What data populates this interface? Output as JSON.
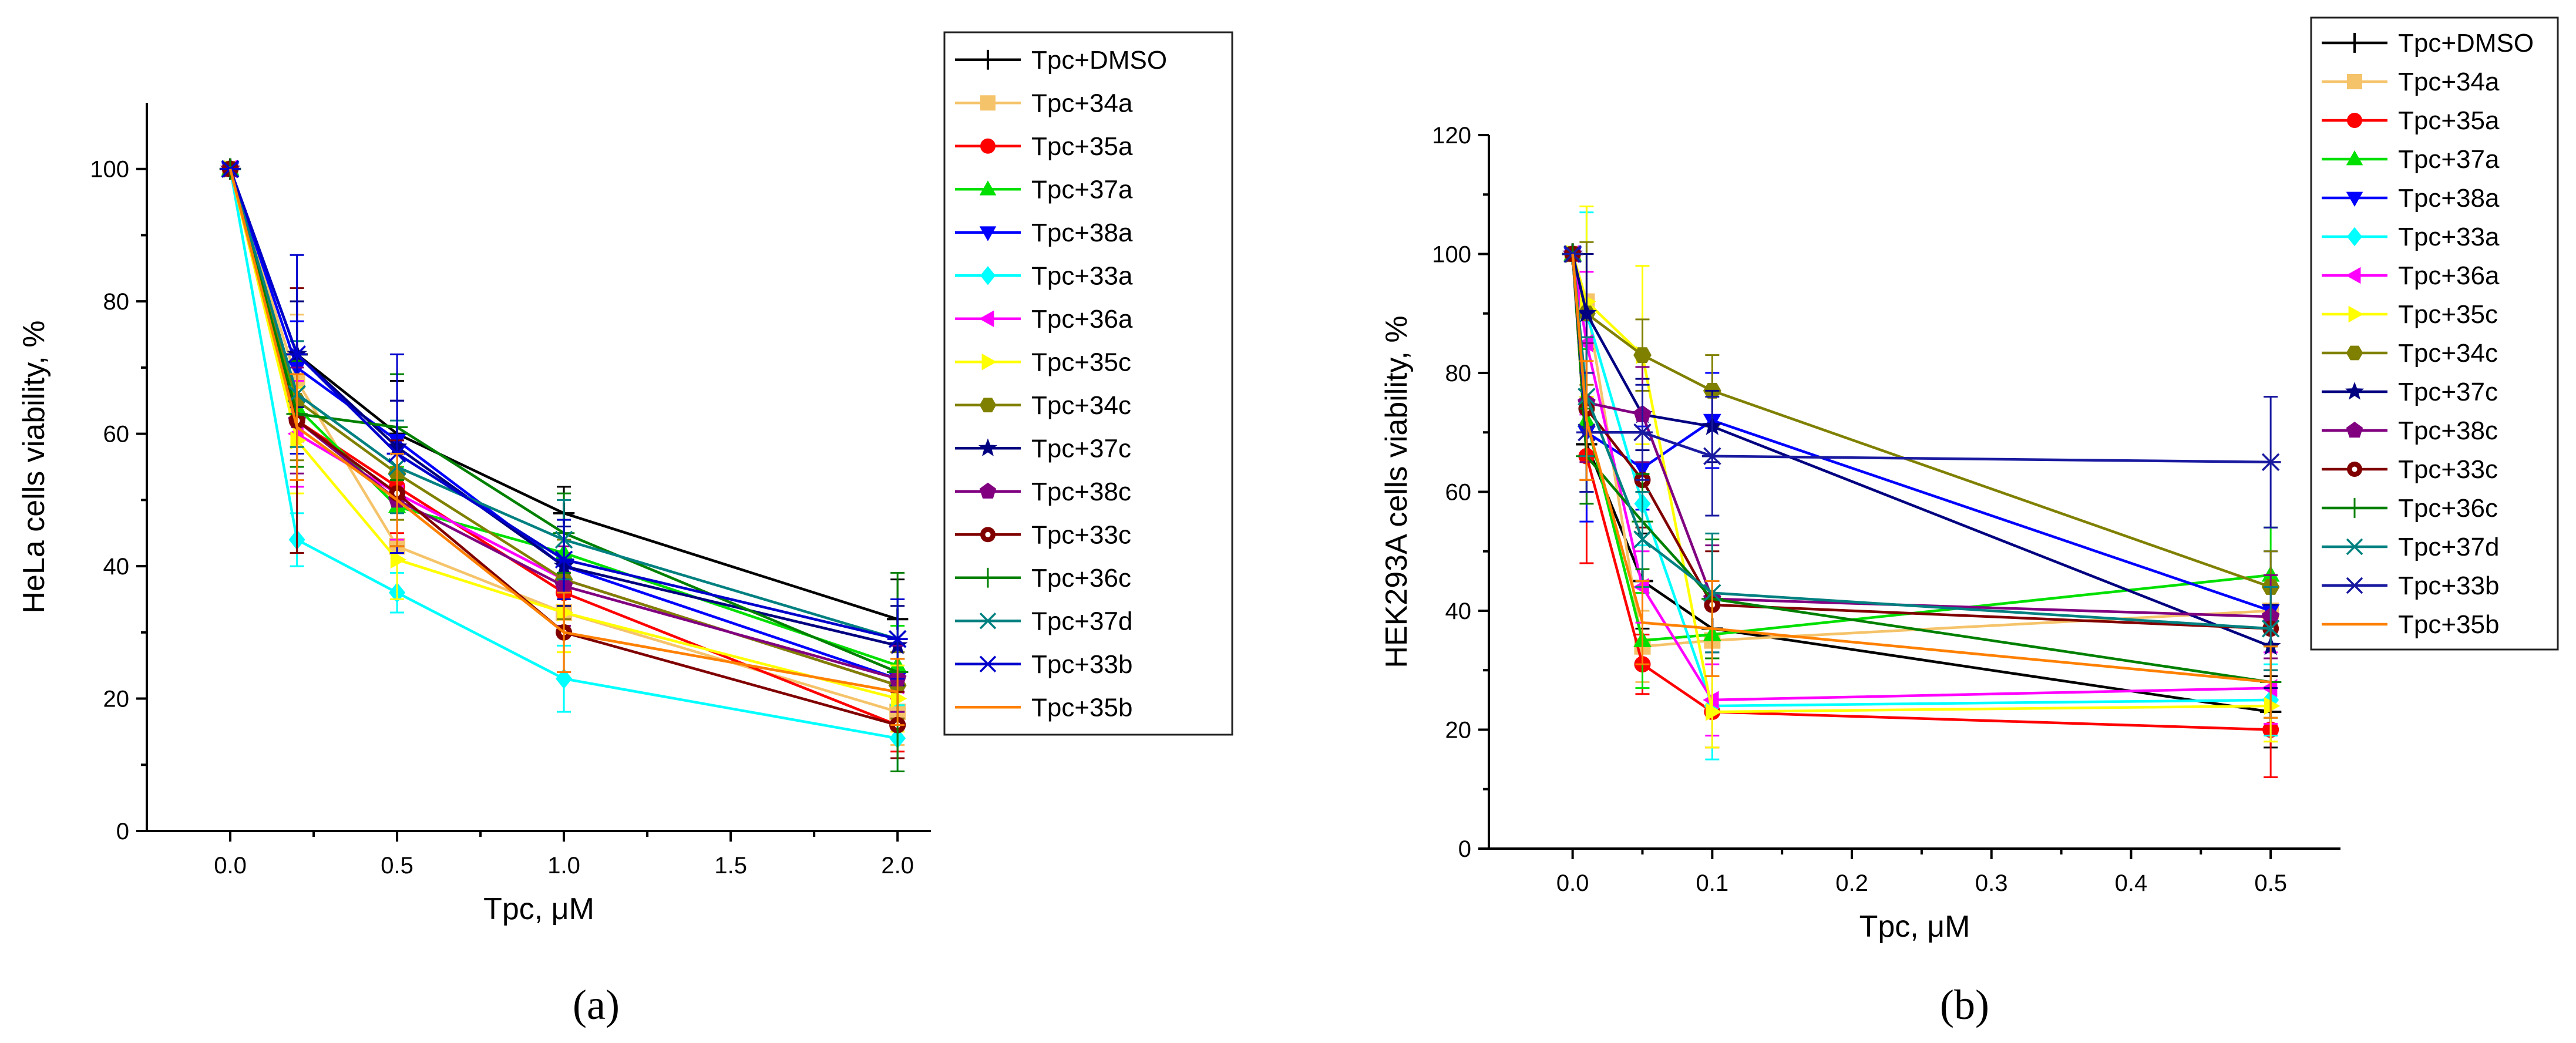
{
  "chart_data": [
    {
      "type": "line",
      "panel_label": "(a)",
      "xlabel": "Tpc, μM",
      "ylabel": "HeLa cells viability, %",
      "xlim": [
        -0.25,
        2.1
      ],
      "ylim": [
        0,
        110
      ],
      "x_ticks": [
        0.0,
        0.5,
        1.0,
        1.5,
        2.0
      ],
      "x_tick_labels": [
        "0.0",
        "0.5",
        "1.0",
        "1.5",
        "2.0"
      ],
      "y_ticks": [
        0,
        20,
        40,
        60,
        80,
        100
      ],
      "y_tick_labels": [
        "0",
        "20",
        "40",
        "60",
        "80",
        "100"
      ],
      "legend_placement": "right",
      "x": [
        0,
        0.2,
        0.5,
        1.0,
        2.0
      ],
      "series": [
        {
          "name": "Tpc+DMSO",
          "color": "#000000",
          "marker": "plus",
          "values": [
            100,
            72,
            60,
            48,
            32
          ],
          "errors": [
            0,
            8,
            8,
            4,
            6
          ]
        },
        {
          "name": "Tpc+34a",
          "color": "#f5c36a",
          "marker": "square",
          "values": [
            100,
            68,
            43,
            33,
            18
          ],
          "errors": [
            0,
            10,
            7,
            6,
            5
          ]
        },
        {
          "name": "Tpc+35a",
          "color": "#ff0000",
          "marker": "circle",
          "values": [
            100,
            62,
            52,
            36,
            16
          ],
          "errors": [
            0,
            9,
            7,
            6,
            4
          ]
        },
        {
          "name": "Tpc+37a",
          "color": "#00e000",
          "marker": "triangle-up",
          "values": [
            100,
            64,
            49,
            42,
            25
          ],
          "errors": [
            0,
            7,
            6,
            5,
            6
          ]
        },
        {
          "name": "Tpc+38a",
          "color": "#0000ff",
          "marker": "triangle-down",
          "values": [
            100,
            70,
            59,
            40,
            23
          ],
          "errors": [
            0,
            7,
            6,
            5,
            5
          ]
        },
        {
          "name": "Tpc+33a",
          "color": "#00ffff",
          "marker": "diamond",
          "values": [
            100,
            44,
            36,
            23,
            14
          ],
          "errors": [
            0,
            4,
            3,
            5,
            5
          ]
        },
        {
          "name": "Tpc+36a",
          "color": "#ff00ff",
          "marker": "triangle-left",
          "values": [
            100,
            60,
            51,
            38,
            22
          ],
          "errors": [
            0,
            8,
            7,
            6,
            5
          ]
        },
        {
          "name": "Tpc+35c",
          "color": "#ffff00",
          "marker": "triangle-right",
          "values": [
            100,
            59,
            41,
            33,
            20
          ],
          "errors": [
            0,
            8,
            6,
            6,
            5
          ]
        },
        {
          "name": "Tpc+34c",
          "color": "#808000",
          "marker": "hexagon",
          "values": [
            100,
            65,
            54,
            38,
            22
          ],
          "errors": [
            0,
            9,
            7,
            6,
            5
          ]
        },
        {
          "name": "Tpc+37c",
          "color": "#000080",
          "marker": "star",
          "values": [
            100,
            72,
            58,
            40,
            28
          ],
          "errors": [
            0,
            8,
            7,
            6,
            6
          ]
        },
        {
          "name": "Tpc+38c",
          "color": "#800080",
          "marker": "pentagon",
          "values": [
            100,
            62,
            50,
            37,
            23
          ],
          "errors": [
            0,
            8,
            7,
            6,
            5
          ]
        },
        {
          "name": "Tpc+33c",
          "color": "#800000",
          "marker": "circle-dot",
          "values": [
            100,
            62,
            51,
            30,
            16
          ],
          "errors": [
            0,
            20,
            8,
            6,
            5
          ]
        },
        {
          "name": "Tpc+36c",
          "color": "#008000",
          "marker": "thin-plus",
          "values": [
            100,
            63,
            61,
            45,
            24
          ],
          "errors": [
            0,
            8,
            8,
            6,
            15
          ]
        },
        {
          "name": "Tpc+37d",
          "color": "#008080",
          "marker": "x",
          "values": [
            100,
            66,
            55,
            44,
            29
          ],
          "errors": [
            0,
            8,
            7,
            6,
            6
          ]
        },
        {
          "name": "Tpc+33b",
          "color": "#0000cd",
          "marker": "asterisk",
          "values": [
            100,
            72,
            57,
            41,
            29
          ],
          "errors": [
            0,
            15,
            15,
            6,
            6
          ]
        },
        {
          "name": "Tpc+35b",
          "color": "#ff8000",
          "marker": "none",
          "values": [
            100,
            61,
            50,
            30,
            21
          ],
          "errors": [
            0,
            8,
            7,
            6,
            5
          ]
        }
      ]
    },
    {
      "type": "line",
      "panel_label": "(b)",
      "xlabel": "Tpc, μM",
      "ylabel": "HEK293A cells viability, %",
      "xlim": [
        -0.06,
        0.55
      ],
      "ylim": [
        0,
        120
      ],
      "x_ticks": [
        0.0,
        0.1,
        0.2,
        0.3,
        0.4,
        0.5
      ],
      "x_tick_labels": [
        "0.0",
        "0.1",
        "0.2",
        "0.3",
        "0.4",
        "0.5"
      ],
      "y_ticks": [
        0,
        20,
        40,
        60,
        80,
        100,
        120
      ],
      "y_tick_labels": [
        "0",
        "20",
        "40",
        "60",
        "80",
        "100",
        "120"
      ],
      "legend_placement": "right",
      "x": [
        0,
        0.01,
        0.05,
        0.1,
        0.5
      ],
      "series": [
        {
          "name": "Tpc+DMSO",
          "color": "#000000",
          "marker": "plus",
          "values": [
            100,
            68,
            45,
            37,
            23
          ],
          "errors": [
            0,
            8,
            8,
            8,
            6
          ]
        },
        {
          "name": "Tpc+34a",
          "color": "#f5c36a",
          "marker": "square",
          "values": [
            100,
            92,
            34,
            35,
            40
          ],
          "errors": [
            0,
            16,
            6,
            6,
            6
          ]
        },
        {
          "name": "Tpc+35a",
          "color": "#ff0000",
          "marker": "circle",
          "values": [
            100,
            66,
            31,
            23,
            20
          ],
          "errors": [
            0,
            18,
            5,
            6,
            8
          ]
        },
        {
          "name": "Tpc+37a",
          "color": "#00e000",
          "marker": "triangle-up",
          "values": [
            100,
            72,
            35,
            36,
            46
          ],
          "errors": [
            0,
            12,
            8,
            7,
            8
          ]
        },
        {
          "name": "Tpc+38a",
          "color": "#0000ff",
          "marker": "triangle-down",
          "values": [
            100,
            70,
            64,
            72,
            40
          ],
          "errors": [
            0,
            15,
            7,
            8,
            10
          ]
        },
        {
          "name": "Tpc+33a",
          "color": "#00ffff",
          "marker": "diamond",
          "values": [
            100,
            90,
            58,
            24,
            25
          ],
          "errors": [
            0,
            17,
            7,
            9,
            6
          ]
        },
        {
          "name": "Tpc+36a",
          "color": "#ff00ff",
          "marker": "triangle-left",
          "values": [
            100,
            85,
            44,
            25,
            27
          ],
          "errors": [
            0,
            12,
            6,
            6,
            6
          ]
        },
        {
          "name": "Tpc+35c",
          "color": "#ffff00",
          "marker": "triangle-right",
          "values": [
            100,
            92,
            83,
            23,
            24
          ],
          "errors": [
            0,
            16,
            15,
            6,
            6
          ]
        },
        {
          "name": "Tpc+34c",
          "color": "#808000",
          "marker": "hexagon",
          "values": [
            100,
            90,
            83,
            77,
            44
          ],
          "errors": [
            0,
            12,
            6,
            6,
            6
          ]
        },
        {
          "name": "Tpc+37c",
          "color": "#000080",
          "marker": "star",
          "values": [
            100,
            90,
            73,
            71,
            34
          ],
          "errors": [
            0,
            10,
            6,
            6,
            7
          ]
        },
        {
          "name": "Tpc+38c",
          "color": "#800080",
          "marker": "pentagon",
          "values": [
            100,
            75,
            73,
            42,
            39
          ],
          "errors": [
            0,
            10,
            8,
            9,
            7
          ]
        },
        {
          "name": "Tpc+33c",
          "color": "#800000",
          "marker": "circle-dot",
          "values": [
            100,
            74,
            62,
            41,
            37
          ],
          "errors": [
            0,
            12,
            8,
            9,
            7
          ]
        },
        {
          "name": "Tpc+36c",
          "color": "#008000",
          "marker": "thin-plus",
          "values": [
            100,
            66,
            55,
            42,
            28
          ],
          "errors": [
            0,
            8,
            8,
            10,
            6
          ]
        },
        {
          "name": "Tpc+37d",
          "color": "#008080",
          "marker": "x",
          "values": [
            100,
            76,
            52,
            43,
            37
          ],
          "errors": [
            0,
            10,
            8,
            10,
            7
          ]
        },
        {
          "name": "Tpc+33b",
          "color": "#1a1aa0",
          "marker": "asterisk",
          "values": [
            100,
            70,
            70,
            66,
            65
          ],
          "errors": [
            0,
            10,
            8,
            10,
            11
          ]
        },
        {
          "name": "Tpc+35b",
          "color": "#ff8000",
          "marker": "none",
          "values": [
            100,
            72,
            38,
            37,
            28
          ],
          "errors": [
            0,
            10,
            7,
            8,
            6
          ]
        }
      ]
    }
  ]
}
